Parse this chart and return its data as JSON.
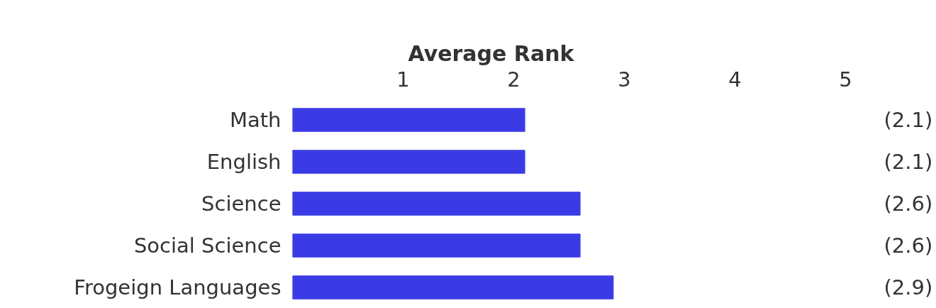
{
  "chart_data": {
    "type": "bar",
    "orientation": "horizontal",
    "title": "Average Rank",
    "categories": [
      "Math",
      "English",
      "Science",
      "Social Science",
      "Frogeign Languages"
    ],
    "values": [
      2.1,
      2.1,
      2.6,
      2.6,
      2.9
    ],
    "value_labels": [
      "(2.1)",
      "(2.1)",
      "(2.6)",
      "(2.6)",
      "(2.9)"
    ],
    "color": "#3b3be6",
    "xlim": [
      0,
      5
    ],
    "xticks": [
      1,
      2,
      3,
      4,
      5
    ],
    "grid": false
  }
}
